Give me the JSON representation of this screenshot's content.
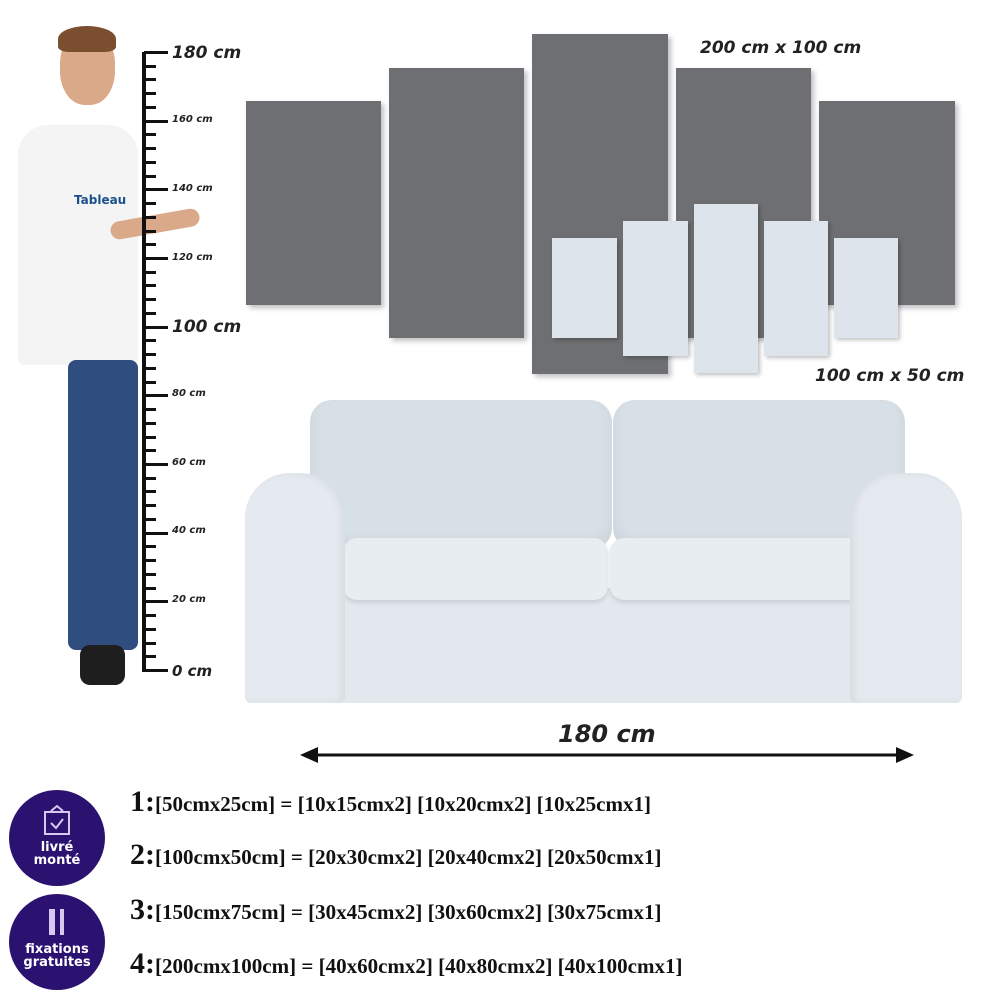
{
  "ruler": {
    "labels": [
      "180 cm",
      "160 cm",
      "140 cm",
      "120 cm",
      "100 cm",
      "80 cm",
      "60 cm",
      "40 cm",
      "20 cm",
      "0 cm"
    ]
  },
  "person": {
    "shirt_logo": "Tableau"
  },
  "panels": {
    "large_label": "200 cm x 100 cm",
    "small_label": "100 cm x 50 cm",
    "panel_color": "#6d6f72",
    "small_panel_color": "#dde4eb"
  },
  "sofa": {
    "width_label": "180 cm"
  },
  "badges": [
    {
      "line1": "livré",
      "line2": "monté",
      "icon": "framed-check-icon"
    },
    {
      "line1": "fixations",
      "line2": "gratuites",
      "icon": "screws-icon"
    }
  ],
  "badge_color": "#2b1170",
  "sizes": [
    {
      "num": "1:",
      "text": "[50cmx25cm] = [10x15cmx2] [10x20cmx2] [10x25cmx1]"
    },
    {
      "num": "2:",
      "text": "[100cmx50cm] = [20x30cmx2] [20x40cmx2] [20x50cmx1]"
    },
    {
      "num": "3:",
      "text": "[150cmx75cm] = [30x45cmx2] [30x60cmx2] [30x75cmx1]"
    },
    {
      "num": "4:",
      "text": "[200cmx100cm] = [40x60cmx2] [40x80cmx2] [40x100cmx1]"
    }
  ]
}
